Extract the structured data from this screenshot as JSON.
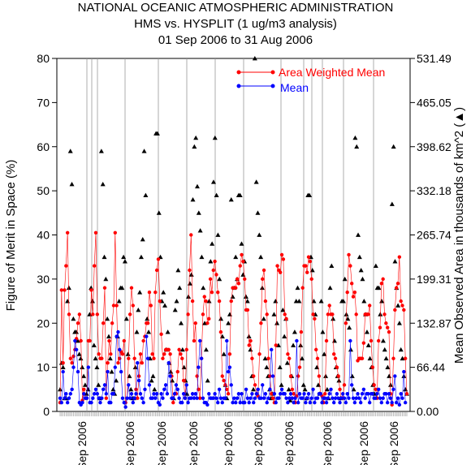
{
  "chart_data": {
    "type": "scatter",
    "title_lines": [
      "NATIONAL OCEANIC ATMOSPHERIC ADMINISTRATION",
      "HMS vs. HYSPLIT (1 ug/m3 analysis)",
      "01 Sep 2006 to 31 Aug 2006"
    ],
    "ylabel": "Figure of Merit in Space (%)",
    "y2label": "Mean Observed Area in thousands of km^2 (▲)",
    "ylim": [
      0,
      80
    ],
    "y2lim": [
      0,
      531.49
    ],
    "yticks": [
      "0",
      "10",
      "20",
      "30",
      "40",
      "50",
      "60",
      "70",
      "80"
    ],
    "y2ticks": [
      "0.00",
      "66.44",
      "132.87",
      "199.31",
      "265.74",
      "332.18",
      "398.62",
      "465.05",
      "531.49"
    ],
    "xlabels": [
      "Sep 2006",
      "Sep 2006",
      "Sep 2006",
      "Sep 2006",
      "Sep 2006",
      "Sep 2006",
      "Sep 2006",
      "Sep 2006",
      "Sep 2006",
      "Sep 2006"
    ],
    "legend_position": "top-right",
    "series": [
      {
        "name": "Area Weighted Mean",
        "color": "#ff0000",
        "values": [
          2,
          27.5,
          11,
          27.5,
          33,
          40.5,
          22,
          12,
          11,
          12.5,
          14,
          16.5,
          20,
          22,
          16,
          2.5,
          5,
          3,
          3,
          16,
          16,
          27.5,
          22,
          33,
          40.5,
          22,
          13,
          12,
          12,
          20,
          28,
          3,
          11,
          16,
          13,
          20,
          24,
          40.5,
          24,
          11,
          12,
          13.5,
          13,
          16,
          2,
          3,
          12,
          22,
          28,
          24,
          12,
          5,
          3,
          8,
          13,
          11,
          16,
          17,
          20,
          20,
          27,
          24,
          13,
          12,
          27,
          32,
          34.5,
          25,
          17.5,
          12,
          13,
          14,
          14,
          14,
          13,
          8,
          2,
          4,
          4,
          9,
          14,
          13,
          12,
          7,
          3,
          14,
          22,
          32,
          40,
          25,
          16,
          20,
          8,
          5,
          3,
          12,
          22,
          26,
          25,
          20,
          21,
          30,
          27,
          32,
          34,
          31,
          27,
          25,
          18,
          8,
          7,
          6,
          5,
          4,
          13,
          25,
          28,
          28,
          28,
          30,
          29,
          33,
          35.5,
          34,
          30,
          23,
          23,
          15,
          16,
          12,
          8,
          6,
          4,
          3.5,
          13,
          20,
          30,
          32,
          25,
          22,
          12,
          8,
          4,
          3,
          2,
          15,
          33,
          32,
          31.5,
          35.5,
          34.5,
          22,
          21,
          13,
          12,
          8,
          5,
          4,
          2,
          3.5,
          8,
          10,
          18,
          28,
          33,
          33,
          31.5,
          35,
          34,
          30,
          22,
          21,
          14,
          12,
          8,
          4,
          3.5,
          2,
          4,
          16,
          22,
          24,
          22,
          22,
          13,
          12,
          10,
          8,
          5,
          3,
          3,
          6,
          20,
          27,
          35.5,
          33,
          29,
          26,
          27,
          22,
          11.5,
          12,
          12,
          12,
          15.5,
          22,
          22,
          22,
          24,
          16,
          10,
          6,
          5,
          3,
          16,
          19,
          29,
          30,
          22,
          20,
          19,
          18,
          4,
          1.5,
          12,
          23,
          28,
          29,
          35,
          25,
          24,
          23,
          12,
          4
        ]
      },
      {
        "name": "Mean",
        "color": "#0000ff",
        "values": [
          3,
          2,
          9,
          3,
          4,
          2,
          3,
          4,
          5,
          10,
          16,
          14,
          9,
          2,
          1.5,
          2,
          4,
          3,
          3,
          10,
          2,
          2,
          3,
          4,
          5,
          4,
          3,
          2,
          3,
          5,
          6,
          4,
          9,
          2,
          2,
          4,
          4,
          10,
          17,
          18,
          14,
          9,
          3,
          2,
          1,
          3,
          6,
          3,
          4,
          2,
          3,
          4,
          11,
          7,
          4,
          3,
          2,
          5,
          17,
          12,
          6,
          3,
          3,
          4,
          3,
          4,
          2,
          1.5,
          4,
          3,
          5,
          6,
          4,
          11,
          8,
          3,
          3,
          4,
          6,
          5,
          3,
          2,
          2,
          4,
          3,
          6,
          2,
          3,
          3,
          4,
          3,
          4,
          3,
          10,
          16,
          12,
          3,
          2,
          2,
          1.5,
          4,
          3,
          3,
          3,
          4,
          3,
          2,
          5,
          3,
          2,
          3,
          3,
          16,
          9,
          10,
          6,
          2,
          3,
          2,
          3,
          4,
          2,
          4,
          2,
          2,
          5,
          3,
          2,
          3,
          4,
          2,
          3,
          4,
          5,
          3,
          3,
          6,
          3,
          4,
          2,
          3,
          5,
          14,
          8,
          4,
          2,
          3,
          3,
          4,
          5,
          4,
          4,
          3,
          2,
          3,
          4,
          3,
          2,
          3,
          16,
          2,
          4,
          3,
          3,
          4,
          2,
          3,
          4,
          2,
          3,
          5,
          2,
          3,
          3,
          4,
          4,
          2,
          3,
          3,
          2,
          3,
          4,
          5,
          3,
          2,
          3,
          4,
          3,
          2,
          3,
          4,
          3,
          2,
          4,
          3,
          16,
          6,
          3,
          2,
          3,
          4,
          3,
          2,
          4,
          5,
          3,
          4,
          4,
          2,
          4,
          4,
          3,
          3,
          4,
          5,
          3,
          2,
          3,
          4,
          4,
          2,
          4,
          3,
          2,
          5,
          8,
          2,
          3,
          1.5,
          4,
          3,
          9,
          2
        ]
      },
      {
        "name": "Mean Observed Area",
        "color": "#000000",
        "axis": "right",
        "values_left_scale": [
          5,
          11,
          10,
          3,
          3,
          25,
          28,
          59,
          51.5,
          21,
          18,
          18,
          16,
          13,
          12,
          10,
          8,
          6,
          4,
          5,
          22,
          28,
          25,
          15,
          12,
          10,
          6,
          3,
          59,
          51.5,
          35,
          30,
          21,
          17,
          12,
          9,
          5,
          4,
          7,
          17,
          25,
          28,
          28,
          35,
          34,
          21,
          13,
          8,
          5,
          3,
          3,
          10,
          18,
          23,
          27,
          35,
          39,
          59,
          49,
          21,
          18,
          12,
          7,
          8,
          5,
          63,
          63,
          45,
          35,
          25,
          27,
          24,
          14,
          18,
          11,
          9,
          7,
          3,
          23,
          25,
          32,
          28,
          20,
          14,
          10,
          7,
          4,
          26,
          29,
          31,
          48,
          60,
          62,
          51,
          45,
          41,
          35,
          28,
          20,
          14,
          7,
          25,
          34,
          38,
          52,
          62,
          49,
          40,
          30,
          21,
          17,
          13,
          6,
          3,
          20,
          22,
          48,
          26,
          28,
          35,
          30,
          49,
          49,
          38,
          31,
          34,
          26,
          25,
          17,
          14,
          8,
          5,
          80,
          52,
          45,
          40,
          35,
          28,
          21,
          12,
          10,
          8,
          5,
          3,
          4,
          22,
          25,
          20,
          15,
          10,
          6,
          23,
          17,
          21,
          11,
          5,
          2.5,
          8,
          15,
          18,
          25,
          28,
          25,
          15,
          12,
          6,
          5,
          3,
          49,
          49,
          35,
          32,
          25,
          22,
          10,
          6,
          4,
          25,
          18,
          13,
          8,
          5,
          3,
          28,
          33,
          21,
          16,
          10,
          8,
          7,
          3,
          25,
          25,
          30,
          22,
          21,
          19,
          14,
          8,
          5,
          62,
          60,
          40,
          35,
          32,
          30,
          25,
          22,
          18,
          15,
          12,
          10,
          6,
          4,
          33,
          28,
          28,
          22,
          25,
          16,
          14,
          12,
          10,
          8,
          6,
          47,
          60,
          34,
          28,
          24,
          20,
          14,
          12,
          8,
          5,
          4
        ]
      }
    ],
    "month_separators": 14
  }
}
